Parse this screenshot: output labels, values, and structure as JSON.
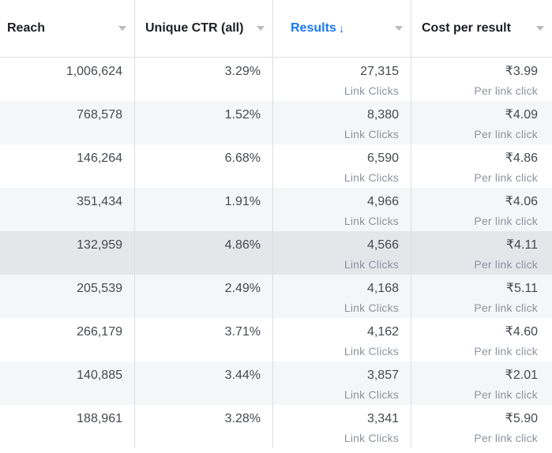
{
  "columns": [
    {
      "label": "Reach",
      "sorted": false
    },
    {
      "label": "Unique CTR (all)",
      "sorted": false
    },
    {
      "label": "Results",
      "sorted": true,
      "sort_arrow": "↓"
    },
    {
      "label": "Cost per result",
      "sorted": false
    }
  ],
  "rows": [
    {
      "reach": "1,006,624",
      "ctr": "3.29%",
      "results": "27,315",
      "results_sub": "Link Clicks",
      "cost": "₹3.99",
      "cost_sub": "Per link click"
    },
    {
      "reach": "768,578",
      "ctr": "1.52%",
      "results": "8,380",
      "results_sub": "Link Clicks",
      "cost": "₹4.09",
      "cost_sub": "Per link click"
    },
    {
      "reach": "146,264",
      "ctr": "6.68%",
      "results": "6,590",
      "results_sub": "Link Clicks",
      "cost": "₹4.86",
      "cost_sub": "Per link click"
    },
    {
      "reach": "351,434",
      "ctr": "1.91%",
      "results": "4,966",
      "results_sub": "Link Clicks",
      "cost": "₹4.06",
      "cost_sub": "Per link click"
    },
    {
      "reach": "132,959",
      "ctr": "4.86%",
      "results": "4,566",
      "results_sub": "Link Clicks",
      "cost": "₹4.11",
      "cost_sub": "Per link click"
    },
    {
      "reach": "205,539",
      "ctr": "2.49%",
      "results": "4,168",
      "results_sub": "Link Clicks",
      "cost": "₹5.11",
      "cost_sub": "Per link click"
    },
    {
      "reach": "266,179",
      "ctr": "3.71%",
      "results": "4,162",
      "results_sub": "Link Clicks",
      "cost": "₹4.60",
      "cost_sub": "Per link click"
    },
    {
      "reach": "140,885",
      "ctr": "3.44%",
      "results": "3,857",
      "results_sub": "Link Clicks",
      "cost": "₹2.01",
      "cost_sub": "Per link click"
    },
    {
      "reach": "188,961",
      "ctr": "3.28%",
      "results": "3,341",
      "results_sub": "Link Clicks",
      "cost": "₹5.90",
      "cost_sub": "Per link click"
    }
  ],
  "colors": {
    "accent": "#1877f2",
    "row_alt": "#f5f6f7",
    "row_hover": "#e4e6e9",
    "border": "#dadde1"
  }
}
